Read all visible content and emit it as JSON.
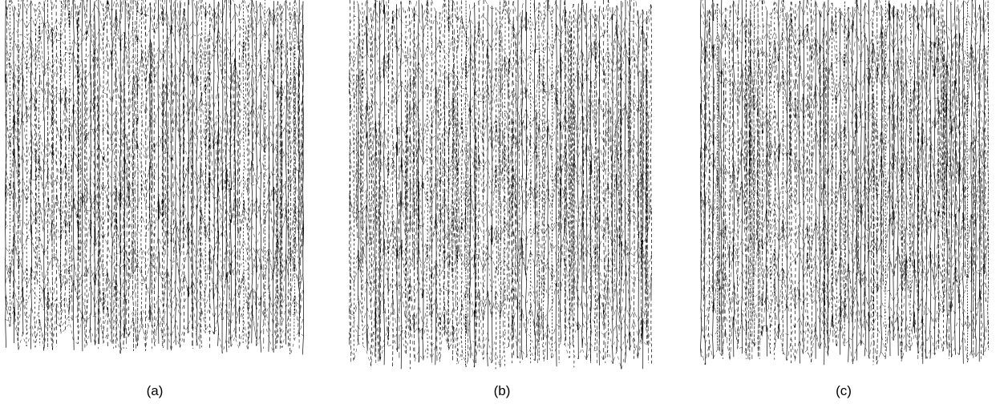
{
  "panels": [
    {
      "id": "a",
      "caption": "(a)",
      "seed": 11,
      "colors": {
        "line": "#000000"
      }
    },
    {
      "id": "b",
      "caption": "(b)",
      "seed": 29,
      "colors": {
        "line": "#000000"
      }
    },
    {
      "id": "c",
      "caption": "(c)",
      "seed": 47,
      "colors": {
        "line": "#000000"
      }
    }
  ]
}
